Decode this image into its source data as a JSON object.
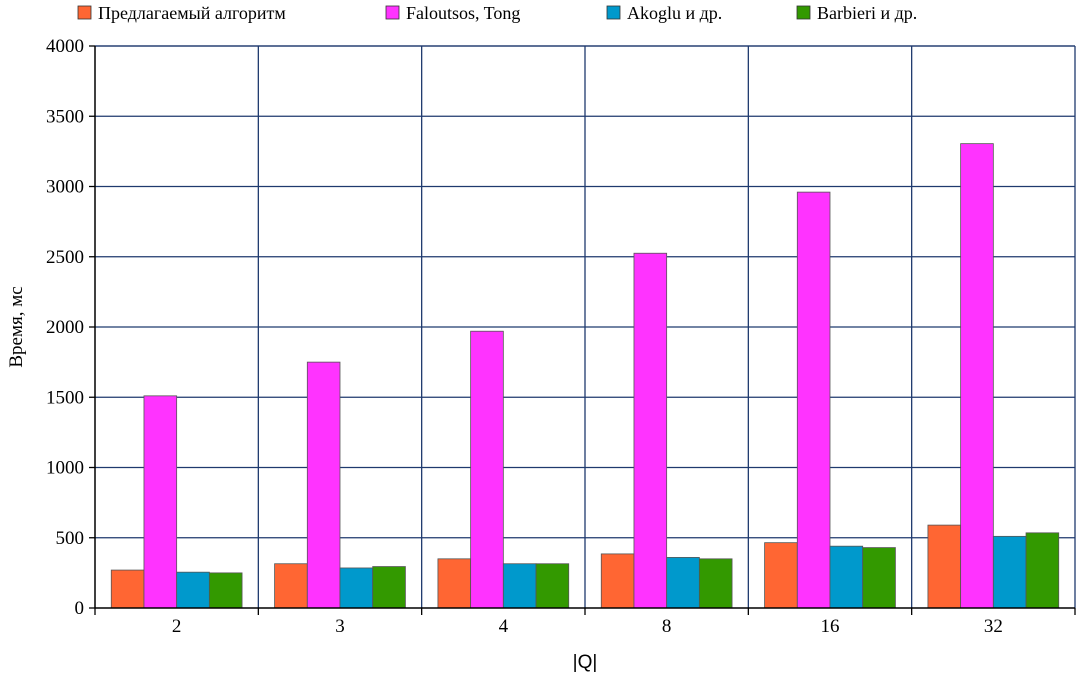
{
  "chart_data": {
    "type": "bar",
    "title": "",
    "xlabel": "|Q|",
    "ylabel": "Время, мс",
    "categories": [
      "2",
      "3",
      "4",
      "8",
      "16",
      "32"
    ],
    "ylim": [
      0,
      4000
    ],
    "yticks": [
      0,
      500,
      1000,
      1500,
      2000,
      2500,
      3000,
      3500,
      4000
    ],
    "grid": true,
    "legend_position": "top",
    "series": [
      {
        "name": "Предлагаемый алгоритм",
        "color": "#ff6633",
        "values": [
          270,
          315,
          350,
          385,
          465,
          590
        ]
      },
      {
        "name": "Faloutsos, Tong",
        "color": "#ff33ff",
        "values": [
          1510,
          1750,
          1970,
          2525,
          2960,
          3305
        ]
      },
      {
        "name": "Akoglu и др.",
        "color": "#0099cc",
        "values": [
          255,
          285,
          315,
          360,
          440,
          510
        ]
      },
      {
        "name": "Barbieri и др.",
        "color": "#339900",
        "values": [
          250,
          295,
          315,
          350,
          430,
          535
        ]
      }
    ],
    "grid_color": "#1f3a6e",
    "axis_color": "#000000"
  }
}
